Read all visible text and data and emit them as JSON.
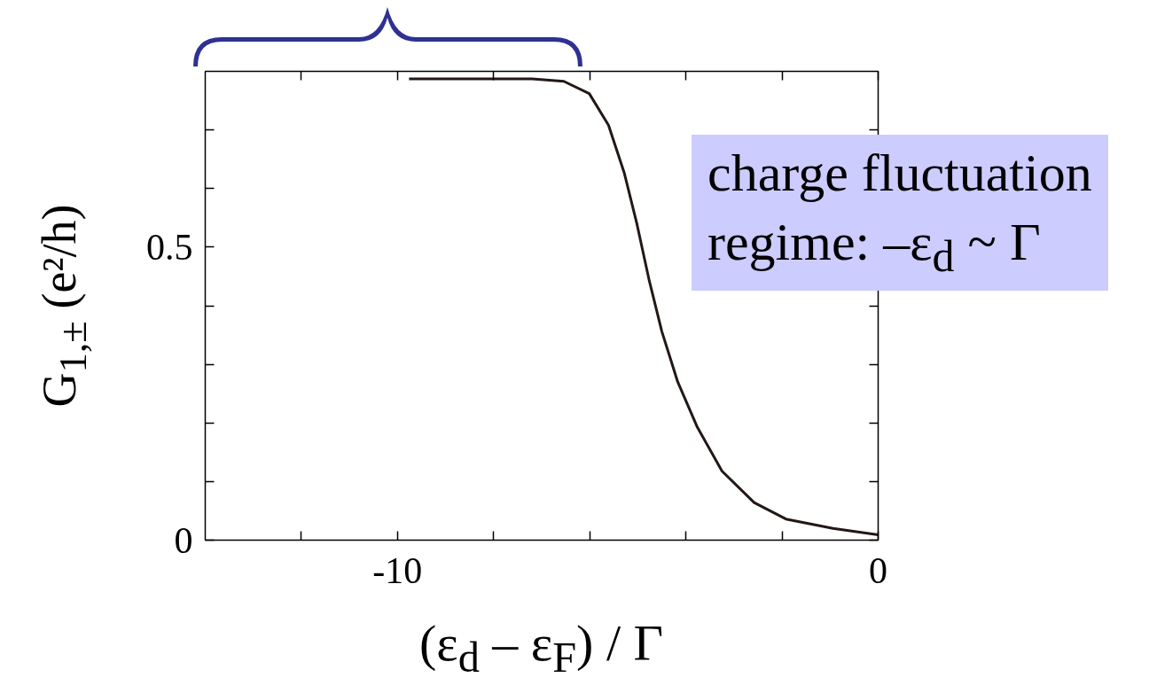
{
  "chart_data": {
    "type": "line",
    "xlabel": "(ε$_{d}$ – ε$_{F}$) / Γ",
    "ylabel": "G$_{1,±}$ (e²/h)",
    "annotations": [
      "charge fluctuation\nregime: –ε$_{d}$ ~ Γ"
    ],
    "x": [
      -9.76,
      -8.5,
      -7.2,
      -6.54,
      -6.01,
      -5.61,
      -5.28,
      -5.02,
      -4.76,
      -4.5,
      -4.17,
      -3.77,
      -3.25,
      -2.58,
      -1.92,
      -0.94,
      0
    ],
    "series": [
      {
        "color": "#231816",
        "values": [
          0.787,
          0.787,
          0.787,
          0.783,
          0.762,
          0.708,
          0.626,
          0.54,
          0.442,
          0.356,
          0.27,
          0.194,
          0.118,
          0.064,
          0.036,
          0.02,
          0.009
        ]
      }
    ],
    "xlim": [
      -14,
      0
    ],
    "ylim": [
      0,
      0.8
    ],
    "xticks": [
      {
        "value": -12,
        "label": null
      },
      {
        "value": -10,
        "label": "-10"
      },
      {
        "value": -8,
        "label": null
      },
      {
        "value": -6,
        "label": null
      },
      {
        "value": -4,
        "label": null
      },
      {
        "value": -2,
        "label": null
      },
      0
    ],
    "yticks": [
      0,
      {
        "value": 0.1,
        "label": null
      },
      {
        "value": 0.2,
        "label": null
      },
      {
        "value": 0.3,
        "label": null
      },
      {
        "value": 0.4,
        "label": null
      },
      {
        "value": 0.5,
        "label": "0.5"
      },
      {
        "value": 0.6,
        "label": null
      },
      {
        "value": 0.7,
        "label": null
      }
    ],
    "grid": false,
    "marker": "none",
    "line_style": "solid"
  }
}
